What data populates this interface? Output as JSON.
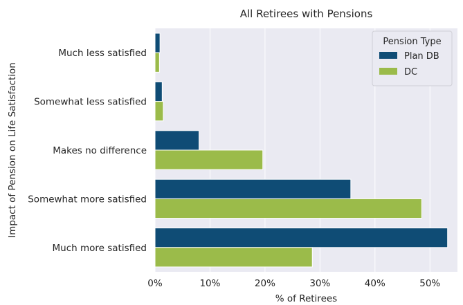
{
  "chart_data": {
    "type": "bar",
    "orientation": "horizontal",
    "title": "All Retirees with Pensions",
    "xlabel": "% of Retirees",
    "ylabel": "Impact of Pension on Life Satisfaction",
    "categories": [
      "Much less satisfied",
      "Somewhat less satisfied",
      "Makes no difference",
      "Somewhat more satisfied",
      "Much more satisfied"
    ],
    "series": [
      {
        "name": "Plan DB",
        "color": "#0f4c75",
        "values": [
          0.9,
          1.3,
          8.0,
          35.6,
          53.2
        ]
      },
      {
        "name": "DC",
        "color": "#9bbb4a",
        "values": [
          0.8,
          1.5,
          19.6,
          48.5,
          28.6
        ]
      }
    ],
    "xlim": [
      0,
      55
    ],
    "xticks": [
      0,
      10,
      20,
      30,
      40,
      50
    ],
    "xtick_labels": [
      "0%",
      "10%",
      "20%",
      "30%",
      "40%",
      "50%"
    ],
    "legend": {
      "title": "Pension Type",
      "position": "top-right"
    },
    "grid": true,
    "background": "#eaeaf2"
  }
}
